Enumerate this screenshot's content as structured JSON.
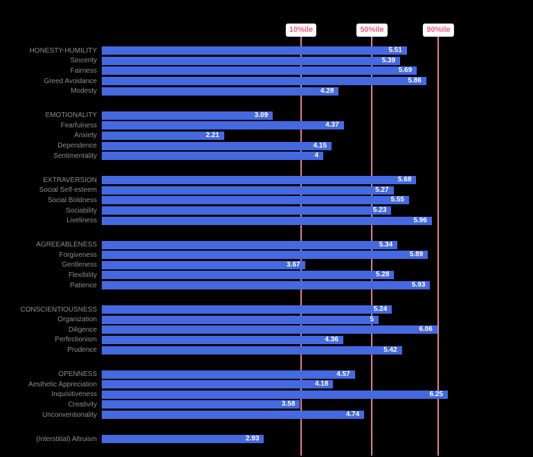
{
  "chart_data": {
    "type": "bar",
    "orientation": "horizontal",
    "title": "",
    "xlabel": "",
    "ylabel": "",
    "axis": {
      "min": 0,
      "max": 7
    },
    "grid": false,
    "legend": false,
    "percentile_lines": [
      {
        "label": "10%ile",
        "value": 3.6
      },
      {
        "label": "50%ile",
        "value": 4.88
      },
      {
        "label": "90%ile",
        "value": 6.08
      }
    ],
    "groups": [
      {
        "name": "honesty-humility",
        "rows": [
          {
            "label": "HONESTY-HUMILITY",
            "value": 5.51,
            "display": "5.51"
          },
          {
            "label": "Sincerity",
            "value": 5.39,
            "display": "5.39"
          },
          {
            "label": "Fairness",
            "value": 5.69,
            "display": "5.69"
          },
          {
            "label": "Greed Avoidance",
            "value": 5.86,
            "display": "5.86"
          },
          {
            "label": "Modesty",
            "value": 4.28,
            "display": "4.28"
          }
        ]
      },
      {
        "name": "emotionality",
        "rows": [
          {
            "label": "EMOTIONALITY",
            "value": 3.09,
            "display": "3.09"
          },
          {
            "label": "Fearfulness",
            "value": 4.37,
            "display": "4.37"
          },
          {
            "label": "Anxiety",
            "value": 2.21,
            "display": "2.21"
          },
          {
            "label": "Dependence",
            "value": 4.15,
            "display": "4.15"
          },
          {
            "label": "Sentimentality",
            "value": 4,
            "display": "4"
          }
        ]
      },
      {
        "name": "extraversion",
        "rows": [
          {
            "label": "EXTRAVERSION",
            "value": 5.68,
            "display": "5.68"
          },
          {
            "label": "Social Self-esteem",
            "value": 5.27,
            "display": "5.27"
          },
          {
            "label": "Social Boldness",
            "value": 5.55,
            "display": "5.55"
          },
          {
            "label": "Sociability",
            "value": 5.23,
            "display": "5.23"
          },
          {
            "label": "Liveliness",
            "value": 5.96,
            "display": "5.96"
          }
        ]
      },
      {
        "name": "agreeableness",
        "rows": [
          {
            "label": "AGREEABLENESS",
            "value": 5.34,
            "display": "5.34"
          },
          {
            "label": "Forgiveness",
            "value": 5.89,
            "display": "5.89"
          },
          {
            "label": "Gentleness",
            "value": 3.67,
            "display": "3.67"
          },
          {
            "label": "Flexibility",
            "value": 5.28,
            "display": "5.28"
          },
          {
            "label": "Patience",
            "value": 5.93,
            "display": "5.93"
          }
        ]
      },
      {
        "name": "conscientiousness",
        "rows": [
          {
            "label": "CONSCIENTIOUSNESS",
            "value": 5.24,
            "display": "5.24"
          },
          {
            "label": "Organization",
            "value": 5,
            "display": "5"
          },
          {
            "label": "Diligence",
            "value": 6.06,
            "display": "6.06"
          },
          {
            "label": "Perfectionism",
            "value": 4.36,
            "display": "4.36"
          },
          {
            "label": "Prudence",
            "value": 5.42,
            "display": "5.42"
          }
        ]
      },
      {
        "name": "openness",
        "rows": [
          {
            "label": "OPENNESS",
            "value": 4.57,
            "display": "4.57"
          },
          {
            "label": "Aesthetic Appreciation",
            "value": 4.18,
            "display": "4.18"
          },
          {
            "label": "Inquisitiveness",
            "value": 6.25,
            "display": "6.25"
          },
          {
            "label": "Creativity",
            "value": 3.58,
            "display": "3.58"
          },
          {
            "label": "Unconventionality",
            "value": 4.74,
            "display": "4.74"
          }
        ]
      },
      {
        "name": "interstitial",
        "rows": [
          {
            "label": "(Interstitial) Altruism",
            "value": 2.93,
            "display": "2.93"
          }
        ]
      }
    ],
    "colors": {
      "bar": "#4569e1",
      "percentile_line": "#e87f97",
      "percentile_label_text": "#ed5f85",
      "percentile_label_bg": "#ffffff",
      "row_label_text": "#8e8e8e",
      "value_text": "#ffffff",
      "background": "#000000"
    }
  }
}
